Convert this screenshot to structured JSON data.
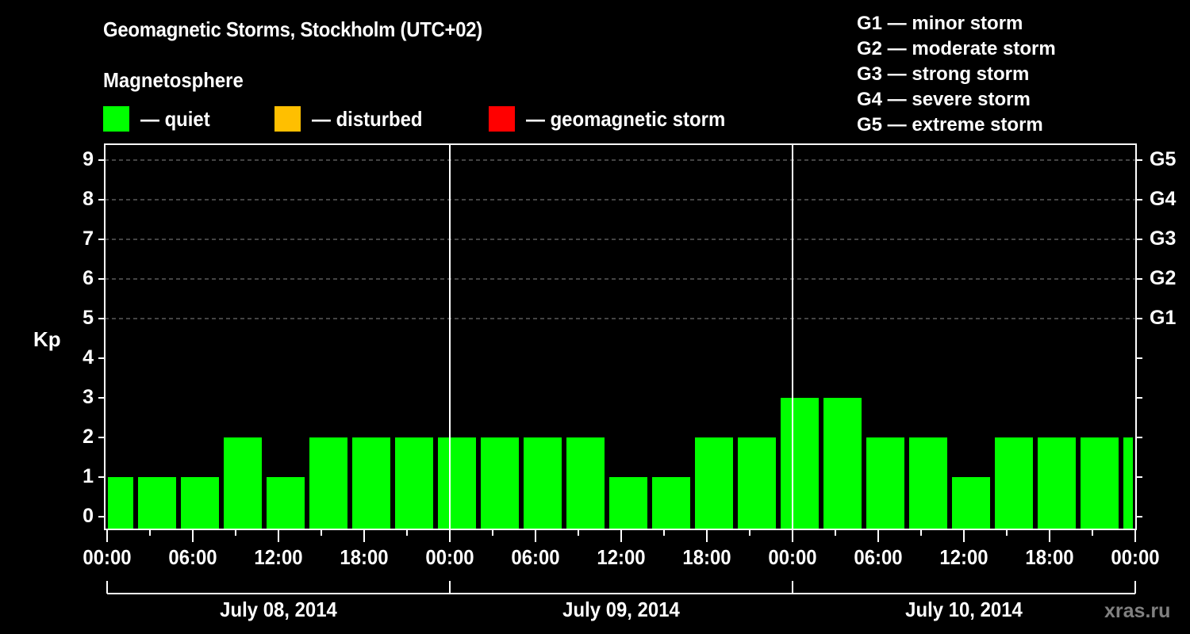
{
  "header": {
    "title": "Geomagnetic Storms, Stockholm (UTC+02)",
    "subtitle": "Magnetosphere"
  },
  "legend": [
    {
      "label": "— quiet",
      "color": "#00ff00"
    },
    {
      "label": "— disturbed",
      "color": "#ffbf00"
    },
    {
      "label": "— geomagnetic storm",
      "color": "#ff0000"
    }
  ],
  "g_scale": [
    "G1 — minor storm",
    "G2 — moderate storm",
    "G3 — strong storm",
    "G4 — severe storm",
    "G5 — extreme storm"
  ],
  "axes": {
    "ylabel": "Kp",
    "y_ticks": [
      "0",
      "1",
      "2",
      "3",
      "4",
      "5",
      "6",
      "7",
      "8",
      "9"
    ],
    "g_ticks": {
      "5": "G1",
      "6": "G2",
      "7": "G3",
      "8": "G4",
      "9": "G5"
    },
    "x_ticks": [
      "00:00",
      "06:00",
      "12:00",
      "18:00",
      "00:00",
      "06:00",
      "12:00",
      "18:00",
      "00:00",
      "06:00",
      "12:00",
      "18:00",
      "00:00"
    ],
    "days": [
      "July 08, 2014",
      "July 09, 2014",
      "July 10, 2014"
    ]
  },
  "watermark": "xras.ru",
  "chart_data": {
    "type": "bar",
    "title": "Geomagnetic Storms, Stockholm (UTC+02)",
    "subtitle": "Magnetosphere",
    "xlabel": "",
    "ylabel": "Kp",
    "ylim": [
      0,
      9
    ],
    "interval_hours": 3,
    "x_range": [
      "July 08, 2014 00:00",
      "July 11, 2014 00:00"
    ],
    "categories": [
      "07-08 00:00",
      "07-08 02:00",
      "07-08 05:00",
      "07-08 08:00",
      "07-08 11:00",
      "07-08 14:00",
      "07-08 17:00",
      "07-08 20:00",
      "07-08 23:00",
      "07-09 02:00",
      "07-09 05:00",
      "07-09 08:00",
      "07-09 11:00",
      "07-09 14:00",
      "07-09 17:00",
      "07-09 20:00",
      "07-09 23:00",
      "07-10 02:00",
      "07-10 05:00",
      "07-10 08:00",
      "07-10 11:00",
      "07-10 14:00",
      "07-10 17:00",
      "07-10 20:00",
      "07-10 23:00"
    ],
    "values": [
      1,
      1,
      1,
      2,
      1,
      2,
      2,
      2,
      2,
      2,
      2,
      2,
      1,
      1,
      2,
      2,
      3,
      3,
      2,
      2,
      1,
      2,
      2,
      2,
      2
    ],
    "status": "quiet",
    "bar_color": "#00ff00",
    "grid": "dashed horizontal at Kp 5–9",
    "legend": [
      "quiet",
      "disturbed",
      "geomagnetic storm"
    ],
    "right_axis": {
      "5": "G1",
      "6": "G2",
      "7": "G3",
      "8": "G4",
      "9": "G5"
    }
  }
}
